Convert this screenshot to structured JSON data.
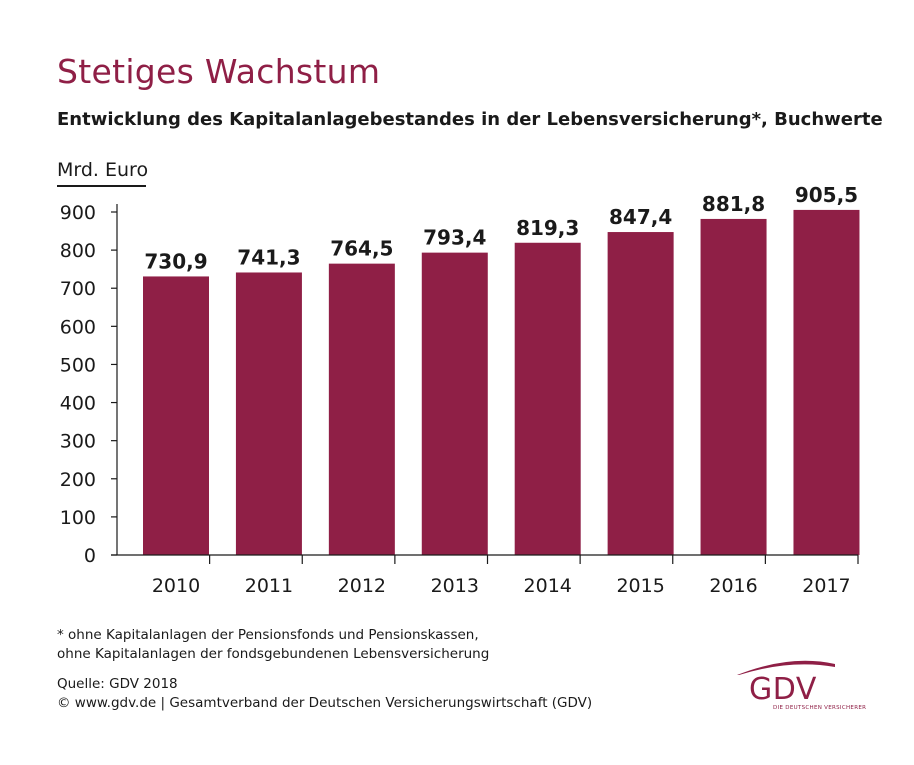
{
  "header": {
    "title": "Stetiges Wachstum",
    "subtitle": "Entwicklung des Kapitalanlagebestandes in der Lebensversicherung*, Buchwerte"
  },
  "chart_data": {
    "type": "bar",
    "title": "Stetiges Wachstum",
    "subtitle": "Entwicklung des Kapitalanlagebestandes in der Lebensversicherung*, Buchwerte",
    "ylabel": "Mrd. Euro",
    "xlabel": "",
    "categories": [
      "2010",
      "2011",
      "2012",
      "2013",
      "2014",
      "2015",
      "2016",
      "2017"
    ],
    "values": [
      730.9,
      741.3,
      764.5,
      793.4,
      819.3,
      847.4,
      881.8,
      905.5
    ],
    "value_labels": [
      "730,9",
      "741,3",
      "764,5",
      "793,4",
      "819,3",
      "847,4",
      "881,8",
      "905,5"
    ],
    "ylim": [
      0,
      900
    ],
    "yticks": [
      "0",
      "100",
      "200",
      "300",
      "400",
      "500",
      "600",
      "700",
      "800",
      "900"
    ],
    "bar_color": "#8f1f46",
    "grid": false,
    "legend": "none"
  },
  "footnote": {
    "line1": "* ohne Kapitalanlagen der Pensionsfonds und Pensionskassen,",
    "line2": "ohne Kapitalanlagen der fondsgebundenen Lebensversicherung"
  },
  "source": {
    "line1": "Quelle: GDV 2018",
    "line2": "© www.gdv.de | Gesamtverband der Deutschen Versicherungswirtschaft (GDV)"
  },
  "logo": {
    "text": "GDV",
    "tagline": "DIE DEUTSCHEN VERSICHERER",
    "color": "#8f1f46"
  }
}
